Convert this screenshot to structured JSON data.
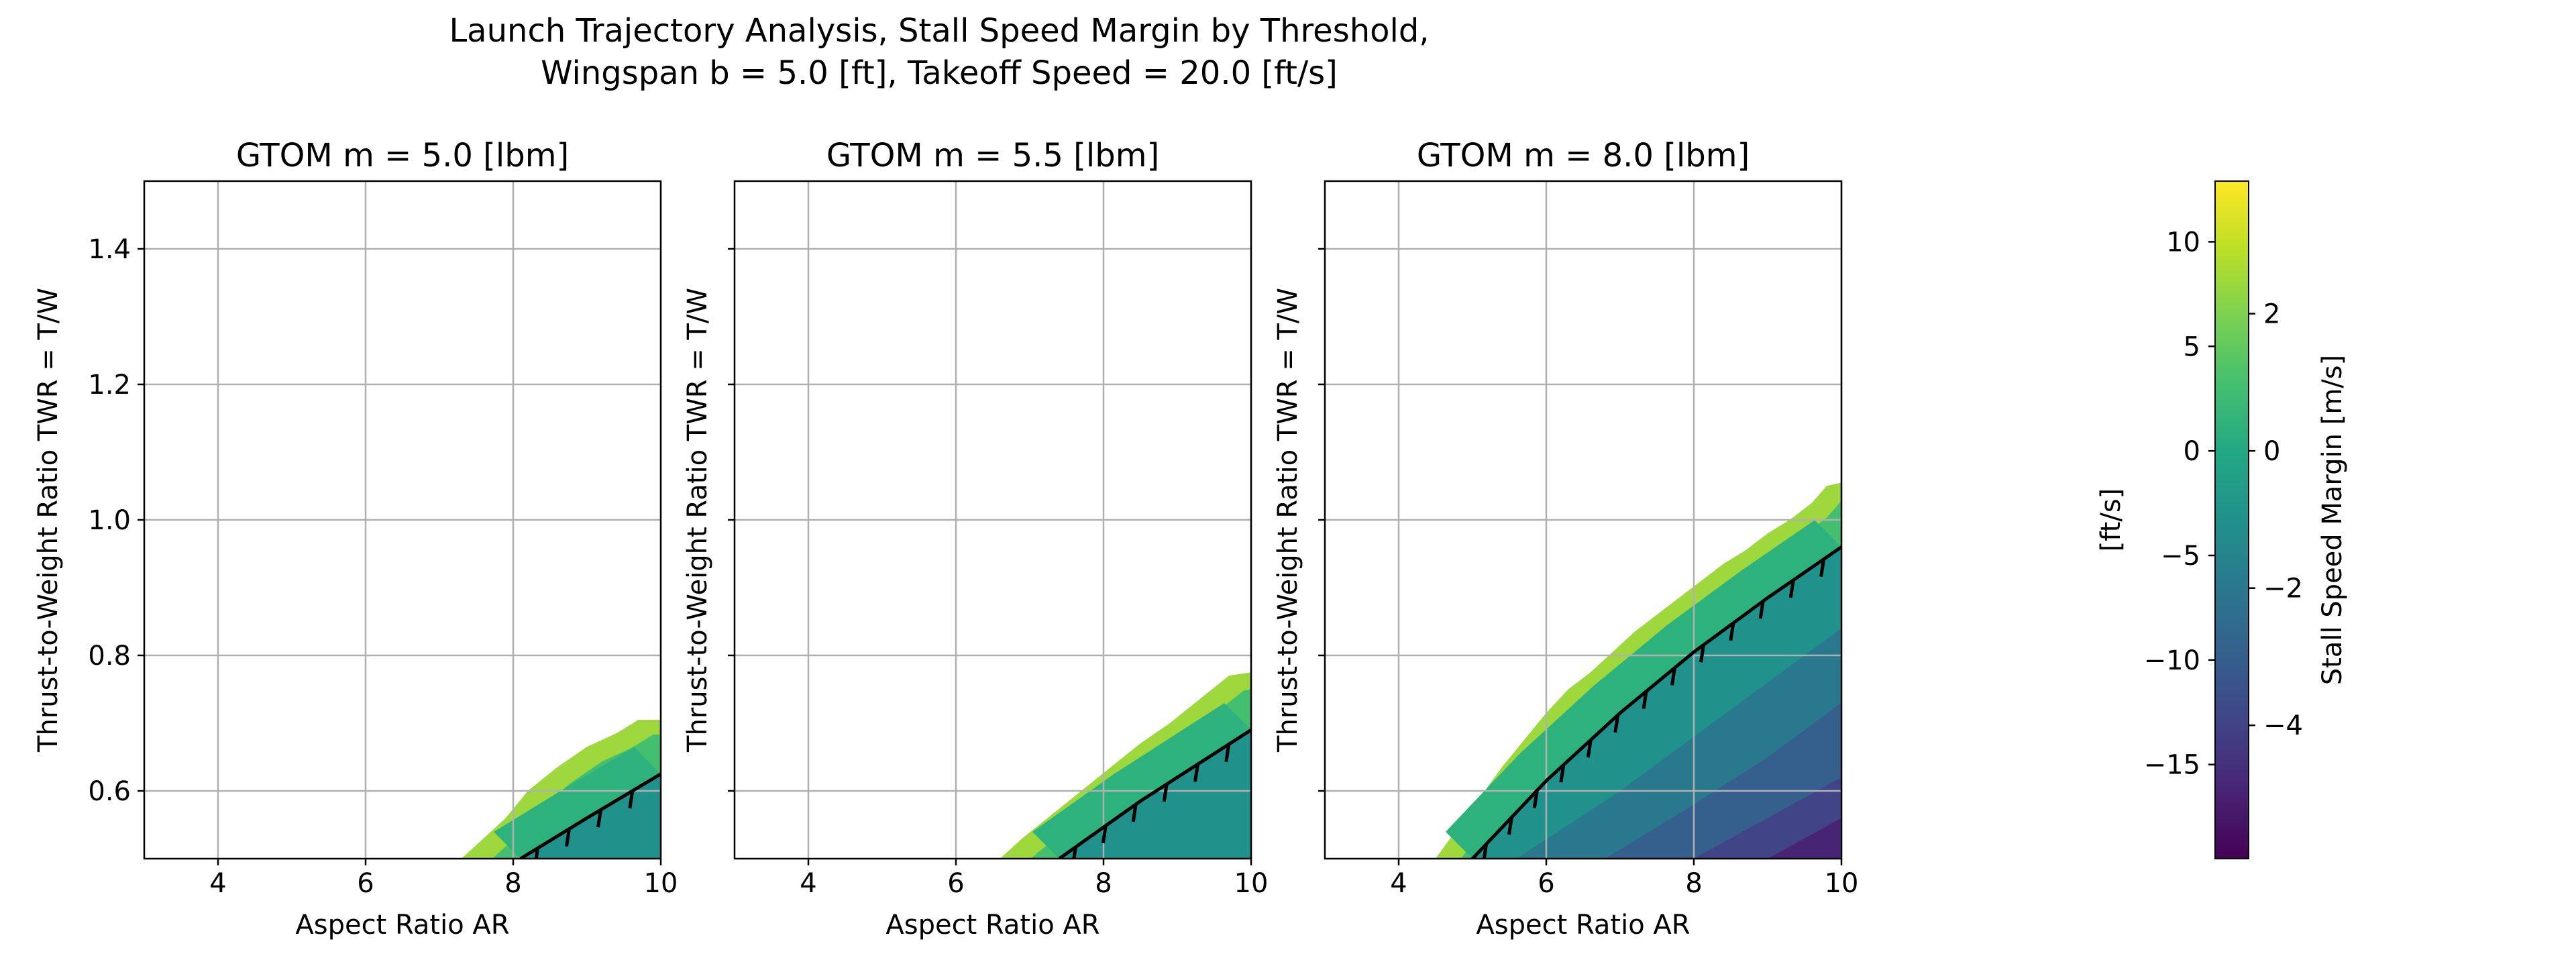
{
  "figure": {
    "title_line1": "Launch Trajectory Analysis, Stall Speed Margin by Threshold,",
    "title_line2": "Wingspan b = 5.0 [ft], Takeoff Speed = 20.0 [ft/s]"
  },
  "chart_data": [
    {
      "type": "contour",
      "title": "GTOM m = 5.0 [lbm]",
      "xlabel": "Aspect Ratio AR",
      "ylabel": "Thrust-to-Weight Ratio TWR = T/W",
      "xlim": [
        3,
        10
      ],
      "ylim": [
        0.5,
        1.5
      ],
      "xticks": [
        4,
        6,
        8,
        10
      ],
      "yticks": [
        0.6,
        0.8,
        1.0,
        1.2,
        1.4
      ],
      "grid": true,
      "stall_constraint_curve": {
        "x": [
          8.1,
          9.0,
          10.0
        ],
        "y": [
          0.5,
          0.56,
          0.625
        ]
      },
      "upper_filled_edge": {
        "x": [
          7.3,
          7.6,
          7.9,
          8.2,
          8.6,
          9.0,
          9.4,
          9.7,
          10.0
        ],
        "y": [
          0.5,
          0.53,
          0.56,
          0.6,
          0.635,
          0.665,
          0.685,
          0.705,
          0.705
        ]
      }
    },
    {
      "type": "contour",
      "title": "GTOM m = 5.5 [lbm]",
      "xlabel": "Aspect Ratio AR",
      "ylabel": "Thrust-to-Weight Ratio TWR = T/W",
      "xlim": [
        3,
        10
      ],
      "ylim": [
        0.5,
        1.5
      ],
      "xticks": [
        4,
        6,
        8,
        10
      ],
      "yticks": [
        0.6,
        0.8,
        1.0,
        1.2,
        1.4
      ],
      "grid": true,
      "stall_constraint_curve": {
        "x": [
          7.4,
          8.5,
          10.0
        ],
        "y": [
          0.5,
          0.585,
          0.69
        ]
      },
      "upper_filled_edge": {
        "x": [
          6.6,
          6.9,
          7.3,
          7.7,
          8.1,
          8.5,
          8.9,
          9.3,
          9.7,
          10.0
        ],
        "y": [
          0.5,
          0.53,
          0.565,
          0.6,
          0.635,
          0.67,
          0.7,
          0.735,
          0.77,
          0.775
        ]
      }
    },
    {
      "type": "contour",
      "title": "GTOM m = 8.0 [lbm]",
      "xlabel": "Aspect Ratio AR",
      "ylabel": "Thrust-to-Weight Ratio TWR = T/W",
      "xlim": [
        3,
        10
      ],
      "ylim": [
        0.5,
        1.5
      ],
      "xticks": [
        4,
        6,
        8,
        10
      ],
      "yticks": [
        0.6,
        0.8,
        1.0,
        1.2,
        1.4
      ],
      "grid": true,
      "stall_constraint_curve": {
        "x": [
          5.0,
          6.0,
          7.0,
          8.0,
          9.0,
          10.0
        ],
        "y": [
          0.5,
          0.615,
          0.715,
          0.805,
          0.885,
          0.96
        ]
      },
      "upper_filled_edge": {
        "x": [
          4.5,
          4.8,
          5.1,
          5.4,
          5.7,
          6.0,
          6.3,
          6.6,
          6.9,
          7.2,
          7.5,
          7.8,
          8.1,
          8.4,
          8.7,
          9.0,
          9.3,
          9.6,
          9.8,
          10.0
        ],
        "y": [
          0.5,
          0.545,
          0.59,
          0.635,
          0.675,
          0.715,
          0.75,
          0.775,
          0.805,
          0.835,
          0.86,
          0.885,
          0.91,
          0.935,
          0.955,
          0.98,
          1.0,
          1.025,
          1.05,
          1.055
        ]
      },
      "level_lines": [
        {
          "points": [
            [
              5.6,
              0.5
            ],
            [
              7.0,
              0.6
            ],
            [
              8.5,
              0.72
            ],
            [
              10.0,
              0.84
            ]
          ]
        },
        {
          "points": [
            [
              6.8,
              0.5
            ],
            [
              8.0,
              0.58
            ],
            [
              9.0,
              0.65
            ],
            [
              10.0,
              0.73
            ]
          ]
        },
        {
          "points": [
            [
              8.0,
              0.5
            ],
            [
              9.0,
              0.56
            ],
            [
              10.0,
              0.62
            ]
          ]
        },
        {
          "points": [
            [
              9.0,
              0.5
            ],
            [
              9.5,
              0.53
            ],
            [
              10.0,
              0.56
            ]
          ]
        }
      ]
    }
  ],
  "colorbar": {
    "left_label": "[ft/s]",
    "right_label": "Stall Speed Margin [m/s]",
    "vmin_ftps": -19.5,
    "vmax_ftps": 12.9,
    "left_ticks": [
      "10",
      "5",
      "0",
      "−5",
      "−10",
      "−15"
    ],
    "left_tick_values": [
      10,
      5,
      0,
      -5,
      -10,
      -15
    ],
    "right_ticks": [
      "2",
      "0",
      "−2",
      "−4"
    ],
    "right_tick_values_ms": [
      2,
      0,
      -2,
      -4
    ],
    "ftps_per_ms": 3.2808
  }
}
